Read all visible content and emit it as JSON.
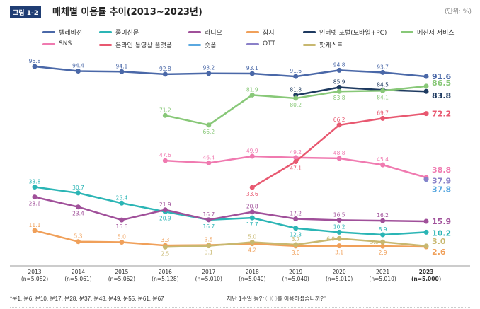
{
  "header": {
    "figure_tag": "그림 1-2",
    "title": "매체별 이용률 추이(2013~2023년)",
    "unit": "(단위: %)"
  },
  "footnote": {
    "questions": "*문1, 문6, 문10, 문17, 문28, 문37, 문43, 문49, 문55, 문61, 문67",
    "question_text": "지난 1주일 동안 ◯◯를 이용하셨습니까?\""
  },
  "chart_data": {
    "type": "line",
    "title": "매체별 이용률 추이(2013~2023년)",
    "ylabel": "",
    "xlabel": "",
    "ylim": [
      0,
      100
    ],
    "grid": false,
    "legend": "top",
    "categories": [
      "2013",
      "2014",
      "2015",
      "2016",
      "2017",
      "2018",
      "2019",
      "2020",
      "2021",
      "2023"
    ],
    "sample_sizes": [
      "(n=5,082)",
      "(n=5,061)",
      "(n=5,062)",
      "(n=5,128)",
      "(n=5,010)",
      "(n=5,040)",
      "(n=5,040)",
      "(n=5,010)",
      "(n=5,010)",
      "(n=5,000)"
    ],
    "series": [
      {
        "name": "텔레비전",
        "color": "#4a68a8",
        "values": [
          96.8,
          94.4,
          94.1,
          92.8,
          93.2,
          93.1,
          91.6,
          94.8,
          93.7,
          91.6
        ]
      },
      {
        "name": "종이신문",
        "color": "#2bb5b5",
        "values": [
          33.8,
          30.7,
          25.4,
          20.9,
          16.7,
          17.7,
          12.3,
          10.2,
          8.9,
          10.2
        ]
      },
      {
        "name": "라디오",
        "color": "#a0509a",
        "values": [
          28.6,
          23.4,
          16.6,
          21.9,
          16.7,
          20.8,
          17.2,
          16.5,
          16.2,
          15.9
        ]
      },
      {
        "name": "잡지",
        "color": "#f0a05a",
        "values": [
          11.1,
          5.3,
          5.0,
          3.3,
          3.5,
          4.2,
          3.0,
          3.1,
          2.9,
          2.6
        ]
      },
      {
        "name": "인터넷 포털(모바일+PC)",
        "color": "#1e3a60",
        "values": [
          null,
          null,
          null,
          null,
          null,
          null,
          81.8,
          85.9,
          84.5,
          83.8
        ]
      },
      {
        "name": "메신저 서비스",
        "color": "#88c878",
        "values": [
          null,
          null,
          null,
          71.2,
          66.2,
          81.9,
          80.2,
          83.8,
          84.1,
          86.5
        ]
      },
      {
        "name": "SNS",
        "color": "#f07ab0",
        "values": [
          null,
          null,
          null,
          47.6,
          46.4,
          49.9,
          49.2,
          48.8,
          45.4,
          38.8
        ]
      },
      {
        "name": "온라인 동영상 플랫폼",
        "color": "#e85870",
        "values": [
          null,
          null,
          null,
          null,
          null,
          33.6,
          47.1,
          66.2,
          69.7,
          72.2
        ]
      },
      {
        "name": "숏폼",
        "color": "#5aa8e0",
        "values": [
          null,
          null,
          null,
          null,
          null,
          null,
          null,
          null,
          null,
          37.8
        ]
      },
      {
        "name": "OTT",
        "color": "#8a80c8",
        "values": [
          null,
          null,
          null,
          null,
          null,
          null,
          null,
          null,
          null,
          37.9
        ]
      },
      {
        "name": "팟캐스트",
        "color": "#c8b870",
        "values": [
          null,
          null,
          null,
          2.5,
          3.1,
          5.0,
          3.7,
          6.9,
          5.1,
          3.0
        ]
      }
    ]
  }
}
